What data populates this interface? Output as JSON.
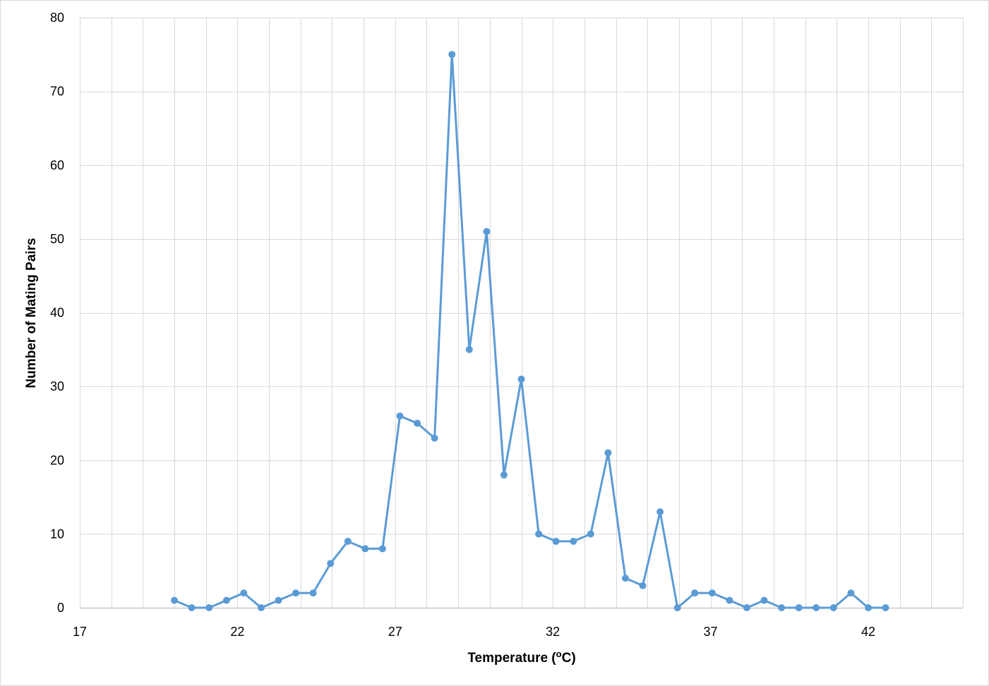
{
  "chart_data": {
    "type": "line",
    "title": "",
    "xlabel": {
      "prefix": "Temperature (",
      "sup": "o",
      "suffix": "C)"
    },
    "ylabel": "Number of Mating Pairs",
    "xlim": [
      17,
      45
    ],
    "ylim": [
      0,
      80
    ],
    "x_major_ticks": [
      17,
      22,
      27,
      32,
      37,
      42
    ],
    "x_minor_step": 1,
    "y_major_ticks": [
      0,
      10,
      20,
      30,
      40,
      50,
      60,
      70,
      80
    ],
    "grid": true,
    "legend": "none",
    "colors": {
      "series": "#5B9BD5",
      "grid": "#D9D9D9",
      "axis": "#BFBFBF",
      "border": "#D9D9D9"
    },
    "series": [
      {
        "x": [
          20.0,
          20.55,
          21.1,
          21.65,
          22.2,
          22.75,
          23.3,
          23.85,
          24.4,
          24.95,
          25.5,
          26.05,
          26.6,
          27.15,
          27.7,
          28.25,
          28.8,
          29.35,
          29.9,
          30.45,
          31.0,
          31.55,
          32.1,
          32.65,
          33.2,
          33.75,
          34.3,
          34.85,
          35.4,
          35.95,
          36.5,
          37.05,
          37.6,
          38.15,
          38.7,
          39.25,
          39.8,
          40.35,
          40.9,
          41.45,
          42.0,
          42.55
        ],
        "y": [
          1,
          0,
          0,
          1,
          2,
          0,
          1,
          2,
          2,
          6,
          9,
          8,
          8,
          26,
          25,
          23,
          75,
          35,
          51,
          18,
          31,
          10,
          9,
          9,
          10,
          21,
          4,
          3,
          13,
          0,
          2,
          2,
          1,
          0,
          1,
          0,
          0,
          0,
          0,
          2,
          0,
          0
        ]
      }
    ]
  }
}
